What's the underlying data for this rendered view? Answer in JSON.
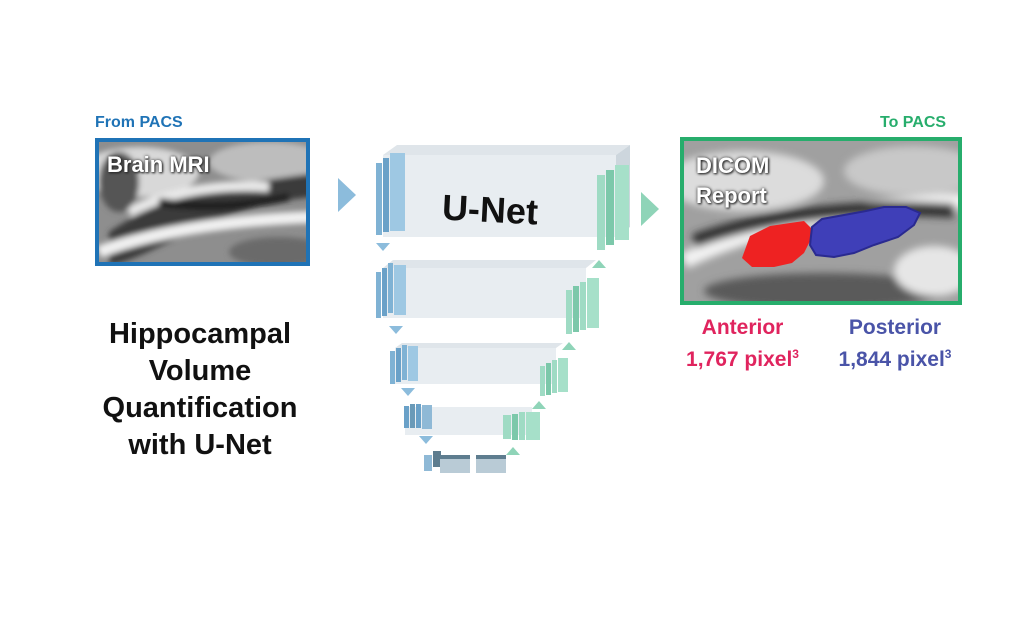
{
  "source": {
    "label": "From PACS",
    "image_label": "Brain MRI",
    "border_color": "#1f73b6"
  },
  "network": {
    "label": "U-Net",
    "encoder_color": "#8fc1e0",
    "decoder_color": "#8fd4b8"
  },
  "output": {
    "label": "To PACS",
    "image_label_line1": "DICOM",
    "image_label_line2": "Report",
    "border_color": "#27ad6c",
    "anterior": {
      "name": "Anterior",
      "value": "1,767 pixel",
      "unit_power": "3",
      "color": "#e0245e"
    },
    "posterior": {
      "name": "Posterior",
      "value": "1,844 pixel",
      "unit_power": "3",
      "color": "#4a54a8"
    }
  },
  "title": {
    "line1": "Hippocampal",
    "line2": "Volume",
    "line3": "Quantification",
    "line4": "with U-Net"
  }
}
